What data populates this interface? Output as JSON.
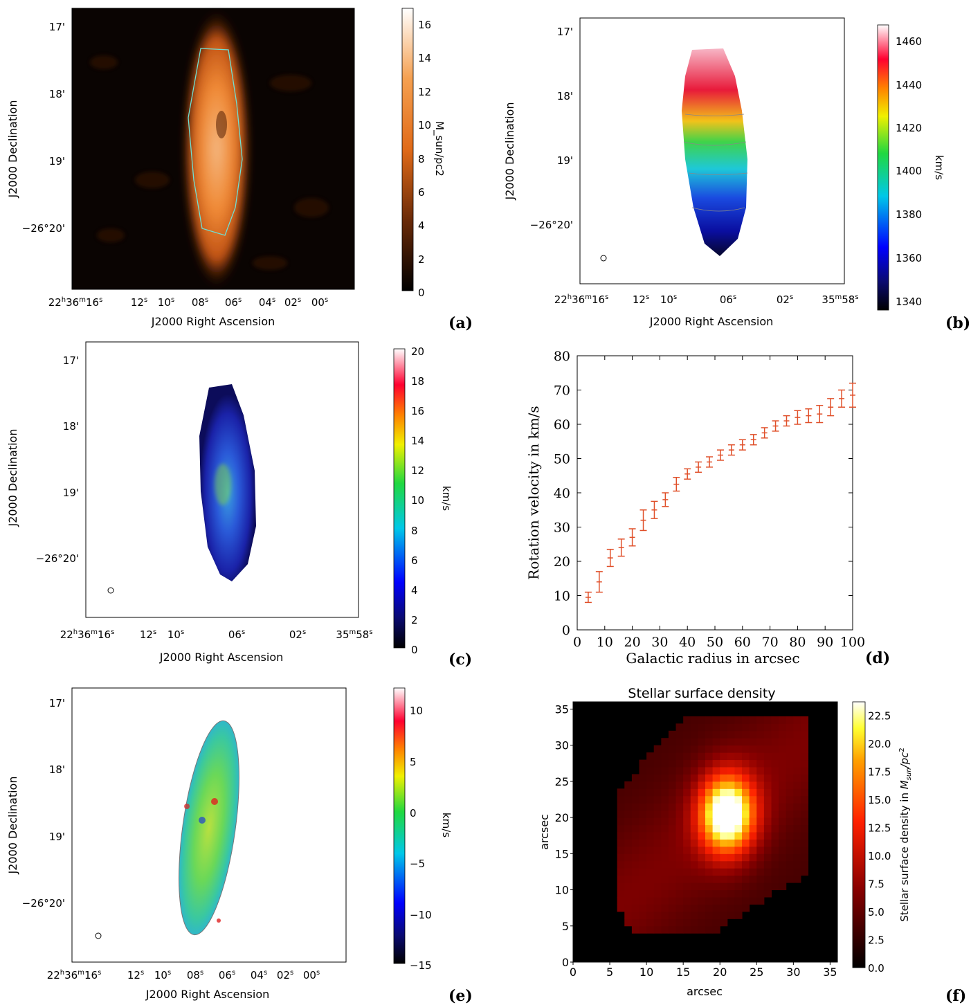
{
  "panels": {
    "a": {
      "label": "(a)",
      "xlabel": "J2000 Right Ascension",
      "ylabel": "J2000 Declination",
      "dec_ticks": [
        "17'",
        "18'",
        "19'",
        "−26°20'"
      ],
      "ra_first": "22h36m16s",
      "ra_ticks": [
        "12s",
        "10s",
        "08s",
        "06s",
        "04s",
        "02s",
        "00s"
      ],
      "colorbar": {
        "ticks": [
          "0",
          "2",
          "4",
          "6",
          "8",
          "10",
          "12",
          "14",
          "16"
        ],
        "unit": "M_sun/pc2",
        "range": [
          0,
          17
        ]
      }
    },
    "b": {
      "label": "(b)",
      "xlabel": "J2000 Right Ascension",
      "ylabel": "J2000 Declination",
      "dec_ticks": [
        "17'",
        "18'",
        "19'",
        "−26°20'"
      ],
      "ra_first": "22h36m16s",
      "ra_ticks": [
        "12s",
        "10s",
        "06s",
        "02s"
      ],
      "ra_last": "35m58s",
      "colorbar": {
        "ticks": [
          "1340",
          "1360",
          "1380",
          "1400",
          "1420",
          "1440",
          "1460"
        ],
        "unit": "km/s",
        "range": [
          1336,
          1467
        ]
      }
    },
    "c": {
      "label": "(c)",
      "xlabel": "J2000 Right Ascension",
      "ylabel": "J2000 Declination",
      "dec_ticks": [
        "17'",
        "18'",
        "19'",
        "−26°20'"
      ],
      "ra_first": "22h36m16s",
      "ra_ticks": [
        "12s",
        "10s",
        "06s",
        "02s"
      ],
      "ra_last": "35m58s",
      "colorbar": {
        "ticks": [
          "0",
          "2",
          "4",
          "6",
          "8",
          "10",
          "12",
          "14",
          "16",
          "18",
          "20"
        ],
        "unit": "km/s",
        "range": [
          0,
          20
        ]
      }
    },
    "e": {
      "label": "(e)",
      "xlabel": "J2000 Right Ascension",
      "ylabel": "J2000 Declination",
      "dec_ticks": [
        "17'",
        "18'",
        "19'",
        "−26°20'"
      ],
      "ra_first": "22h36m16s",
      "ra_ticks": [
        "12s",
        "10s",
        "08s",
        "06s",
        "04s",
        "02s",
        "00s"
      ],
      "colorbar": {
        "ticks": [
          "−15",
          "−10",
          "−5",
          "0",
          "5",
          "10"
        ],
        "unit": "km/s",
        "range": [
          -15,
          12
        ]
      }
    },
    "f": {
      "label": "(f)",
      "colorbar": {
        "ticks": [
          "0.0",
          "2.5",
          "5.0",
          "7.5",
          "10.0",
          "12.5",
          "15.0",
          "17.5",
          "20.0",
          "22.5"
        ],
        "unit_label": "Stellar surface density in M_sun/pc^2",
        "range": [
          0,
          23.7
        ]
      }
    }
  },
  "chart_data": [
    {
      "panel": "d",
      "label": "(d)",
      "type": "line",
      "xlabel": "Galactic radius in arcsec",
      "ylabel": "Rotation velocity in km/s",
      "xlim": [
        0,
        100
      ],
      "ylim": [
        0,
        80
      ],
      "xticks": [
        0,
        10,
        20,
        30,
        40,
        50,
        60,
        70,
        80,
        90,
        100
      ],
      "yticks": [
        0,
        10,
        20,
        30,
        40,
        50,
        60,
        70,
        80
      ],
      "errorbars": true,
      "color": "#e0502a",
      "x": [
        4,
        8,
        12,
        16,
        20,
        24,
        28,
        32,
        36,
        40,
        44,
        48,
        52,
        56,
        60,
        64,
        68,
        72,
        76,
        80,
        84,
        88,
        92,
        96,
        100
      ],
      "y": [
        9.5,
        14,
        21,
        24,
        27,
        32,
        35,
        38,
        42.5,
        45.5,
        47.5,
        49,
        51,
        52.5,
        54,
        55.5,
        57.5,
        59.5,
        61,
        62,
        62.5,
        63,
        65,
        67.5,
        68.5
      ],
      "err": [
        1.5,
        3,
        2.5,
        2.5,
        2.5,
        3,
        2.5,
        2,
        2,
        1.5,
        1.5,
        1.5,
        1.5,
        1.5,
        1.5,
        1.5,
        1.5,
        1.5,
        1.5,
        2,
        2,
        2.5,
        2.5,
        2.5,
        3.5
      ]
    },
    {
      "panel": "f",
      "type": "heatmap",
      "title": "Stellar surface density",
      "xlabel": "arcsec",
      "ylabel": "arcsec",
      "xlim": [
        0,
        36
      ],
      "ylim": [
        0,
        36
      ],
      "xticks": [
        0,
        5,
        10,
        15,
        20,
        25,
        30,
        35
      ],
      "yticks": [
        0,
        5,
        10,
        15,
        20,
        25,
        30,
        35
      ]
    }
  ]
}
